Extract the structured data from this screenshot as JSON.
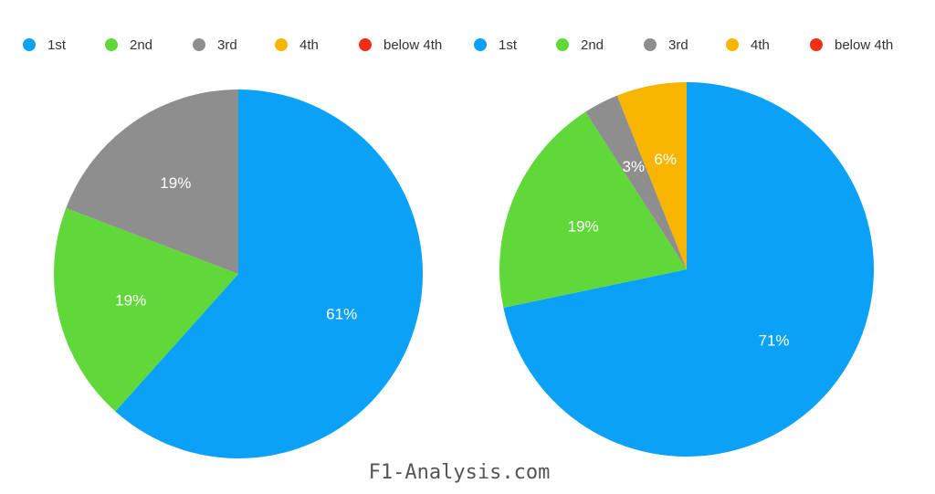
{
  "chart_data": [
    {
      "type": "pie",
      "categories": [
        "1st",
        "2nd",
        "3rd",
        "4th",
        "below 4th"
      ],
      "values": [
        61,
        19,
        19,
        0,
        0
      ],
      "value_labels": [
        "61%",
        "19%",
        "19%",
        "",
        ""
      ],
      "colors": [
        "#0aa1f7",
        "#60d83a",
        "#8e8e8e",
        "#f7b500",
        "#f32f12"
      ],
      "legend": {
        "position": "top",
        "entries": [
          "1st",
          "2nd",
          "3rd",
          "4th",
          "below 4th"
        ]
      },
      "start_angle_deg": 0,
      "direction": "clockwise"
    },
    {
      "type": "pie",
      "categories": [
        "1st",
        "2nd",
        "3rd",
        "4th",
        "below 4th"
      ],
      "values": [
        71,
        19,
        3,
        6,
        0
      ],
      "value_labels": [
        "71%",
        "19%",
        "3%",
        "6%",
        ""
      ],
      "colors": [
        "#0aa1f7",
        "#60d83a",
        "#8e8e8e",
        "#f7b500",
        "#f32f12"
      ],
      "legend": {
        "position": "top",
        "entries": [
          "1st",
          "2nd",
          "3rd",
          "4th",
          "below 4th"
        ]
      },
      "start_angle_deg": 0,
      "direction": "clockwise"
    }
  ],
  "footer": {
    "text": "F1-Analysis.com"
  }
}
